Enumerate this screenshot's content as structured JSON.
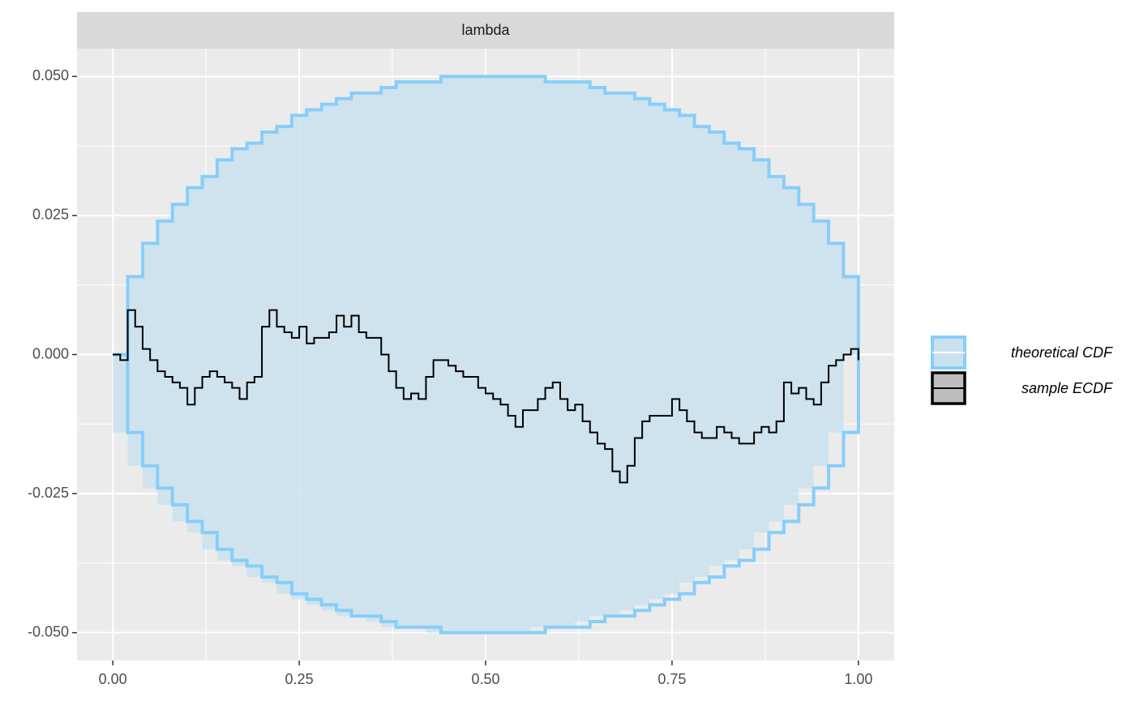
{
  "chart_data": {
    "type": "ecdf_difference",
    "facet": "lambda",
    "xlim": [
      -0.048,
      1.048
    ],
    "ylim": [
      -0.055,
      0.055
    ],
    "xticks": [
      {
        "value": 0,
        "label": "0.00"
      },
      {
        "value": 0.25,
        "label": "0.25"
      },
      {
        "value": 0.5,
        "label": "0.50"
      },
      {
        "value": 0.75,
        "label": "0.75"
      },
      {
        "value": 1,
        "label": "1.00"
      }
    ],
    "yticks": [
      {
        "value": -0.05,
        "label": "-0.050"
      },
      {
        "value": -0.025,
        "label": "-0.025"
      },
      {
        "value": 0,
        "label": "0.000"
      },
      {
        "value": 0.025,
        "label": "0.025"
      },
      {
        "value": 0.05,
        "label": "0.050"
      }
    ],
    "x_minor_ticks": [
      0.125,
      0.375,
      0.625,
      0.875
    ],
    "y_minor_ticks": [
      -0.0375,
      -0.0125,
      0.0125,
      0.0375
    ],
    "grid": true,
    "legend": "right",
    "series": [
      {
        "name": "theoretical CDF",
        "kind": "band",
        "color": "#87cefa",
        "fill": "#cae2ee",
        "x": [
          0,
          0.02,
          0.04,
          0.06,
          0.08,
          0.1,
          0.12,
          0.14,
          0.16,
          0.18,
          0.2,
          0.22,
          0.24,
          0.26,
          0.28,
          0.3,
          0.32,
          0.34,
          0.36,
          0.38,
          0.4,
          0.42,
          0.44,
          0.46,
          0.48,
          0.5,
          0.52,
          0.54,
          0.56,
          0.58,
          0.6,
          0.62,
          0.64,
          0.66,
          0.68,
          0.7,
          0.72,
          0.74,
          0.76,
          0.78,
          0.8,
          0.82,
          0.84,
          0.86,
          0.88,
          0.9,
          0.92,
          0.94,
          0.96,
          0.98,
          1
        ],
        "upper": [
          0,
          0.014,
          0.02,
          0.024,
          0.027,
          0.03,
          0.032,
          0.035,
          0.037,
          0.038,
          0.04,
          0.041,
          0.043,
          0.044,
          0.045,
          0.046,
          0.047,
          0.047,
          0.048,
          0.049,
          0.049,
          0.049,
          0.05,
          0.05,
          0.05,
          0.05,
          0.05,
          0.05,
          0.05,
          0.049,
          0.049,
          0.049,
          0.048,
          0.047,
          0.047,
          0.046,
          0.045,
          0.044,
          0.043,
          0.041,
          0.04,
          0.038,
          0.037,
          0.035,
          0.032,
          0.03,
          0.027,
          0.024,
          0.02,
          0.014,
          0
        ],
        "lower": [
          0,
          -0.014,
          -0.02,
          -0.024,
          -0.027,
          -0.03,
          -0.032,
          -0.035,
          -0.037,
          -0.038,
          -0.04,
          -0.041,
          -0.043,
          -0.044,
          -0.045,
          -0.046,
          -0.047,
          -0.047,
          -0.048,
          -0.049,
          -0.049,
          -0.049,
          -0.05,
          -0.05,
          -0.05,
          -0.05,
          -0.05,
          -0.05,
          -0.05,
          -0.049,
          -0.049,
          -0.049,
          -0.048,
          -0.047,
          -0.047,
          -0.046,
          -0.045,
          -0.044,
          -0.043,
          -0.041,
          -0.04,
          -0.038,
          -0.037,
          -0.035,
          -0.032,
          -0.03,
          -0.027,
          -0.024,
          -0.02,
          -0.014,
          0
        ]
      },
      {
        "name": "sample ECDF",
        "kind": "step",
        "color": "#000000",
        "fill": "#bebebe",
        "x": [
          0,
          0.01,
          0.02,
          0.03,
          0.04,
          0.05,
          0.06,
          0.07,
          0.08,
          0.09,
          0.1,
          0.11,
          0.12,
          0.13,
          0.14,
          0.15,
          0.16,
          0.17,
          0.18,
          0.19,
          0.2,
          0.21,
          0.22,
          0.23,
          0.24,
          0.25,
          0.26,
          0.27,
          0.28,
          0.29,
          0.3,
          0.31,
          0.32,
          0.33,
          0.34,
          0.35,
          0.36,
          0.37,
          0.38,
          0.39,
          0.4,
          0.41,
          0.42,
          0.43,
          0.44,
          0.45,
          0.46,
          0.47,
          0.48,
          0.49,
          0.5,
          0.51,
          0.52,
          0.53,
          0.54,
          0.55,
          0.56,
          0.57,
          0.58,
          0.59,
          0.6,
          0.61,
          0.62,
          0.63,
          0.64,
          0.65,
          0.66,
          0.67,
          0.68,
          0.69,
          0.7,
          0.71,
          0.72,
          0.73,
          0.74,
          0.75,
          0.76,
          0.77,
          0.78,
          0.79,
          0.8,
          0.81,
          0.82,
          0.83,
          0.84,
          0.85,
          0.86,
          0.87,
          0.88,
          0.89,
          0.9,
          0.91,
          0.92,
          0.93,
          0.94,
          0.95,
          0.96,
          0.97,
          0.98,
          0.99,
          1
        ],
        "values": [
          0,
          -0.001,
          0.008,
          0.005,
          0.001,
          -0.001,
          -0.003,
          -0.004,
          -0.005,
          -0.006,
          -0.009,
          -0.006,
          -0.004,
          -0.003,
          -0.004,
          -0.005,
          -0.006,
          -0.008,
          -0.005,
          -0.004,
          0.005,
          0.008,
          0.005,
          0.004,
          0.003,
          0.005,
          0.002,
          0.003,
          0.003,
          0.004,
          0.007,
          0.005,
          0.007,
          0.004,
          0.003,
          0.003,
          0,
          -0.003,
          -0.006,
          -0.008,
          -0.007,
          -0.008,
          -0.004,
          -0.001,
          -0.001,
          -0.002,
          -0.003,
          -0.004,
          -0.004,
          -0.006,
          -0.007,
          -0.008,
          -0.009,
          -0.011,
          -0.013,
          -0.01,
          -0.01,
          -0.008,
          -0.006,
          -0.005,
          -0.008,
          -0.01,
          -0.009,
          -0.012,
          -0.014,
          -0.016,
          -0.017,
          -0.021,
          -0.023,
          -0.02,
          -0.015,
          -0.012,
          -0.011,
          -0.011,
          -0.011,
          -0.008,
          -0.01,
          -0.012,
          -0.014,
          -0.015,
          -0.015,
          -0.013,
          -0.014,
          -0.015,
          -0.016,
          -0.016,
          -0.014,
          -0.013,
          -0.014,
          -0.012,
          -0.005,
          -0.007,
          -0.006,
          -0.008,
          -0.009,
          -0.005,
          -0.002,
          -0.001,
          0,
          0.001,
          -0.001
        ]
      }
    ]
  }
}
